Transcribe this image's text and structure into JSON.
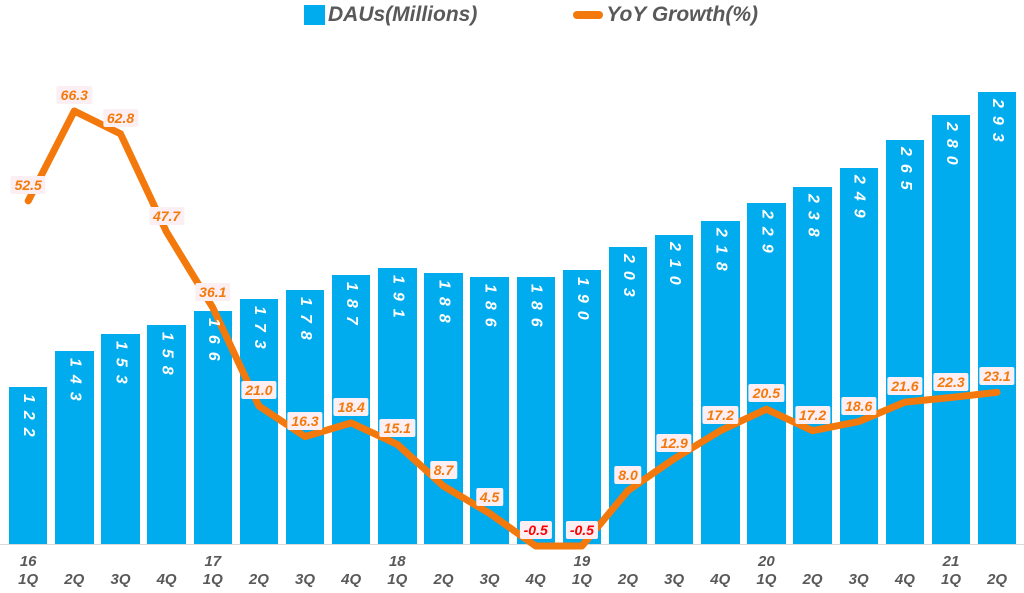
{
  "legend": {
    "position": "top"
  },
  "colors": {
    "bar": "#00ACEE",
    "line": "#F4790C",
    "label_background": "#FBEFF3",
    "negative_label_text": "#FF0000",
    "bar_value_text": "#FFFFFF",
    "axis_text": "#595959",
    "baseline": "#D9D9D9"
  },
  "chart_data": {
    "type": "bar",
    "subtype": "combo-bar-line-dual-axis",
    "title": "",
    "xlabel": "",
    "ylabel": "",
    "gridlines": false,
    "value_axes_hidden": true,
    "legend_position": "top-center",
    "categories": [
      {
        "quarter": "1Q",
        "year": "16"
      },
      {
        "quarter": "2Q"
      },
      {
        "quarter": "3Q"
      },
      {
        "quarter": "4Q"
      },
      {
        "quarter": "1Q",
        "year": "17"
      },
      {
        "quarter": "2Q"
      },
      {
        "quarter": "3Q"
      },
      {
        "quarter": "4Q"
      },
      {
        "quarter": "1Q",
        "year": "18"
      },
      {
        "quarter": "2Q"
      },
      {
        "quarter": "3Q"
      },
      {
        "quarter": "4Q"
      },
      {
        "quarter": "1Q",
        "year": "19"
      },
      {
        "quarter": "2Q"
      },
      {
        "quarter": "3Q"
      },
      {
        "quarter": "4Q"
      },
      {
        "quarter": "1Q",
        "year": "20"
      },
      {
        "quarter": "2Q"
      },
      {
        "quarter": "3Q"
      },
      {
        "quarter": "4Q"
      },
      {
        "quarter": "1Q",
        "year": "21"
      },
      {
        "quarter": "2Q"
      }
    ],
    "series": [
      {
        "name": "DAUs(Millions)",
        "type": "bar",
        "values": [
          122,
          143,
          153,
          158,
          166,
          173,
          178,
          187,
          191,
          188,
          186,
          186,
          190,
          203,
          210,
          218,
          229,
          238,
          249,
          265,
          280,
          293
        ]
      },
      {
        "name": "YoY Growth(%)",
        "type": "line",
        "values": [
          52.5,
          66.3,
          62.8,
          47.7,
          36.1,
          21.0,
          16.3,
          18.4,
          15.1,
          8.7,
          4.5,
          -0.5,
          -0.5,
          8.0,
          12.9,
          17.2,
          20.5,
          17.2,
          18.6,
          21.6,
          22.3,
          23.1
        ]
      }
    ]
  }
}
